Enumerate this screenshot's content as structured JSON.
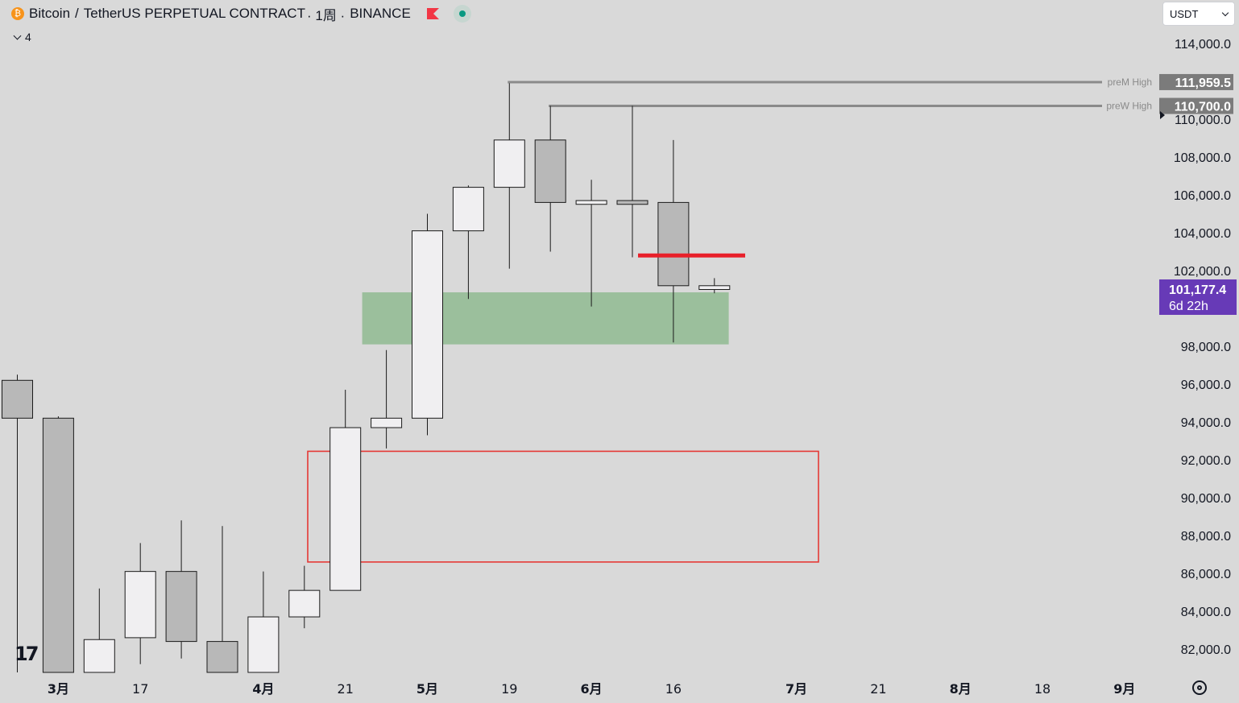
{
  "header": {
    "base": "Bitcoin",
    "separator": "/",
    "quote_title": "TetherUS PERPETUAL CONTRACT",
    "interval": "· 1周 ·",
    "exchange": "BINANCE"
  },
  "indicators": {
    "count": "4"
  },
  "currency_select": {
    "value": "USDT"
  },
  "last_price": {
    "value": 101177.4,
    "label": "101,177.4",
    "countdown": "6d 22h"
  },
  "colors": {
    "background": "#d9d9d9",
    "up_candle": "#f0eff1",
    "down_candle": "#b8b8b8",
    "zone_green": "#9bbf9c",
    "zone_red_border": "#e53935",
    "red_line": "#e8202a",
    "level_line": "#8a8a8a",
    "price_tag": "#673ab7"
  },
  "chart_data": {
    "type": "candlestick",
    "interval": "1W",
    "y_axis": {
      "min": 80300,
      "max": 115250,
      "ticks": [
        82000,
        84000,
        86000,
        88000,
        90000,
        92000,
        94000,
        96000,
        98000,
        102000,
        104000,
        106000,
        108000,
        110000,
        114000
      ],
      "tick_labels": [
        "82,000.0",
        "84,000.0",
        "86,000.0",
        "88,000.0",
        "90,000.0",
        "92,000.0",
        "94,000.0",
        "96,000.0",
        "98,000.0",
        "102,000.0",
        "104,000.0",
        "106,000.0",
        "108,000.0",
        "110,000.0",
        "114,000.0"
      ]
    },
    "x_axis": {
      "labels": [
        {
          "text": "3月",
          "week": 1,
          "bold": true
        },
        {
          "text": "17",
          "week": 3,
          "bold": false
        },
        {
          "text": "4月",
          "week": 6,
          "bold": true
        },
        {
          "text": "21",
          "week": 8,
          "bold": false
        },
        {
          "text": "5月",
          "week": 10,
          "bold": true
        },
        {
          "text": "19",
          "week": 12,
          "bold": false
        },
        {
          "text": "6月",
          "week": 14,
          "bold": true
        },
        {
          "text": "16",
          "week": 16,
          "bold": false
        },
        {
          "text": "7月",
          "week": 19,
          "bold": true
        },
        {
          "text": "21",
          "week": 21,
          "bold": false
        },
        {
          "text": "8月",
          "week": 23,
          "bold": true
        },
        {
          "text": "18",
          "week": 25,
          "bold": false
        },
        {
          "text": "9月",
          "week": 27,
          "bold": true
        }
      ]
    },
    "candles": [
      {
        "week": 0,
        "open": 96200,
        "high": 96500,
        "low": 80300,
        "close": 94200
      },
      {
        "week": 1,
        "open": 94200,
        "high": 94300,
        "low": 80300,
        "close": 80300
      },
      {
        "week": 2,
        "open": 80300,
        "high": 85200,
        "low": 80300,
        "close": 82500
      },
      {
        "week": 3,
        "open": 82600,
        "high": 87600,
        "low": 81200,
        "close": 86100
      },
      {
        "week": 4,
        "open": 86100,
        "high": 88800,
        "low": 81500,
        "close": 82400
      },
      {
        "week": 5,
        "open": 82400,
        "high": 88500,
        "low": 80300,
        "close": 80300
      },
      {
        "week": 6,
        "open": 80300,
        "high": 86100,
        "low": 80300,
        "close": 83700
      },
      {
        "week": 7,
        "open": 83700,
        "high": 86400,
        "low": 83100,
        "close": 85100
      },
      {
        "week": 8,
        "open": 85100,
        "high": 95700,
        "low": 85100,
        "close": 93700
      },
      {
        "week": 9,
        "open": 93700,
        "high": 97800,
        "low": 92600,
        "close": 94200
      },
      {
        "week": 10,
        "open": 94200,
        "high": 105000,
        "low": 93300,
        "close": 104100
      },
      {
        "week": 11,
        "open": 104100,
        "high": 106500,
        "low": 100500,
        "close": 106400
      },
      {
        "week": 12,
        "open": 106400,
        "high": 111900,
        "low": 102100,
        "close": 108900
      },
      {
        "week": 13,
        "open": 108900,
        "high": 110700,
        "low": 103000,
        "close": 105600
      },
      {
        "week": 14,
        "open": 105500,
        "high": 106800,
        "low": 100100,
        "close": 105700
      },
      {
        "week": 15,
        "open": 105700,
        "high": 110700,
        "low": 102700,
        "close": 105500
      },
      {
        "week": 16,
        "open": 105600,
        "high": 108900,
        "low": 98200,
        "close": 101200
      },
      {
        "week": 17,
        "open": 101000,
        "high": 101600,
        "low": 100800,
        "close": 101200
      }
    ],
    "levels": [
      {
        "label": "preM High",
        "value": 111959.5,
        "value_label": "111,959.5",
        "from_week": 12
      },
      {
        "label": "preW High",
        "value": 110700.0,
        "value_label": "110,700.0",
        "from_week": 13
      }
    ],
    "zones": [
      {
        "kind": "green-fill",
        "from_week": 9,
        "to_week": 18,
        "price_low": 98100,
        "price_high": 100850
      },
      {
        "kind": "red-outline",
        "from_week": 7,
        "to_week": 19.6,
        "price_low": 86600,
        "price_high": 92450
      }
    ],
    "segments": [
      {
        "kind": "red-line",
        "from_week": 15.2,
        "to_week": 17.8,
        "price": 102800
      }
    ]
  }
}
